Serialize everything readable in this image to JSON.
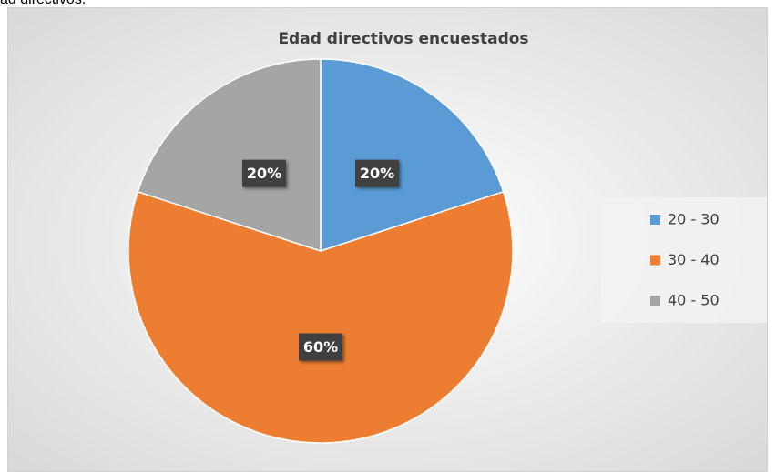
{
  "caption": "ad directivos.",
  "chart_data": {
    "type": "pie",
    "title": "Edad directivos encuestados",
    "categories": [
      "20 - 30",
      "30 - 40",
      "40 - 50"
    ],
    "values": [
      20,
      60,
      20
    ],
    "value_labels": [
      "20%",
      "60%",
      "20%"
    ],
    "colors": [
      "#5b9bd5",
      "#ed7d31",
      "#a5a5a5"
    ],
    "legend": "right"
  }
}
